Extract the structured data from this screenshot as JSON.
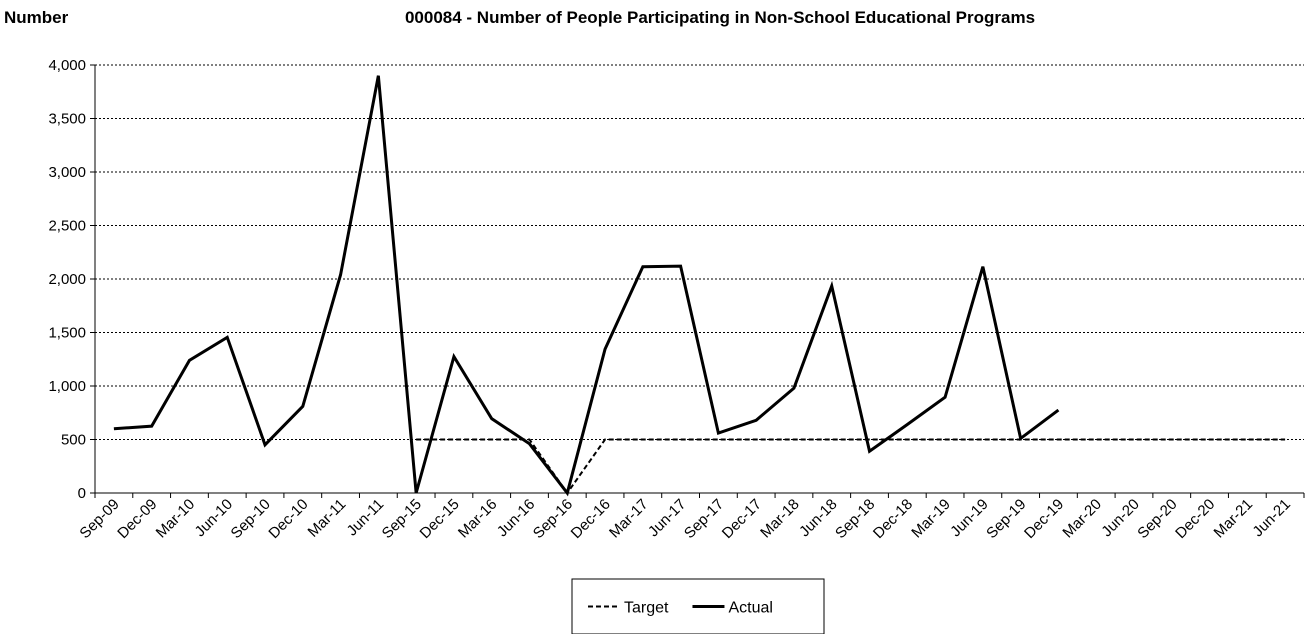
{
  "chart_data": {
    "type": "line",
    "title": "000084 - Number of People Participating in Non-School Educational Programs",
    "ylabel": "Number",
    "xlabel": "",
    "ylim": [
      0,
      4000
    ],
    "yticks": [
      0,
      500,
      1000,
      1500,
      2000,
      2500,
      3000,
      3500,
      4000
    ],
    "ytick_labels": [
      "0",
      "500",
      "1,000",
      "1,500",
      "2,000",
      "2,500",
      "3,000",
      "3,500",
      "4,000"
    ],
    "grid": "horizontal dotted",
    "legend_position": "bottom",
    "categories": [
      "Sep-09",
      "Dec-09",
      "Mar-10",
      "Jun-10",
      "Sep-10",
      "Dec-10",
      "Mar-11",
      "Jun-11",
      "Sep-15",
      "Dec-15",
      "Mar-16",
      "Jun-16",
      "Sep-16",
      "Dec-16",
      "Mar-17",
      "Jun-17",
      "Sep-17",
      "Dec-17",
      "Mar-18",
      "Jun-18",
      "Sep-18",
      "Dec-18",
      "Mar-19",
      "Jun-19",
      "Sep-19",
      "Dec-19",
      "Mar-20",
      "Jun-20",
      "Sep-20",
      "Dec-20",
      "Mar-21",
      "Jun-21"
    ],
    "series": [
      {
        "name": "Target",
        "style": "dashed",
        "color": "#000000",
        "values": [
          null,
          null,
          null,
          null,
          null,
          null,
          null,
          null,
          500,
          500,
          500,
          500,
          0,
          500,
          500,
          500,
          500,
          500,
          500,
          500,
          500,
          500,
          500,
          500,
          500,
          500,
          500,
          500,
          500,
          500,
          500,
          500
        ]
      },
      {
        "name": "Actual",
        "style": "solid",
        "color": "#000000",
        "values": [
          600,
          625,
          1240,
          1455,
          450,
          810,
          2040,
          3900,
          0,
          1275,
          695,
          460,
          0,
          1345,
          2115,
          2120,
          560,
          680,
          980,
          1935,
          390,
          640,
          895,
          2115,
          510,
          775,
          null,
          null,
          null,
          null,
          null,
          null
        ]
      }
    ]
  }
}
